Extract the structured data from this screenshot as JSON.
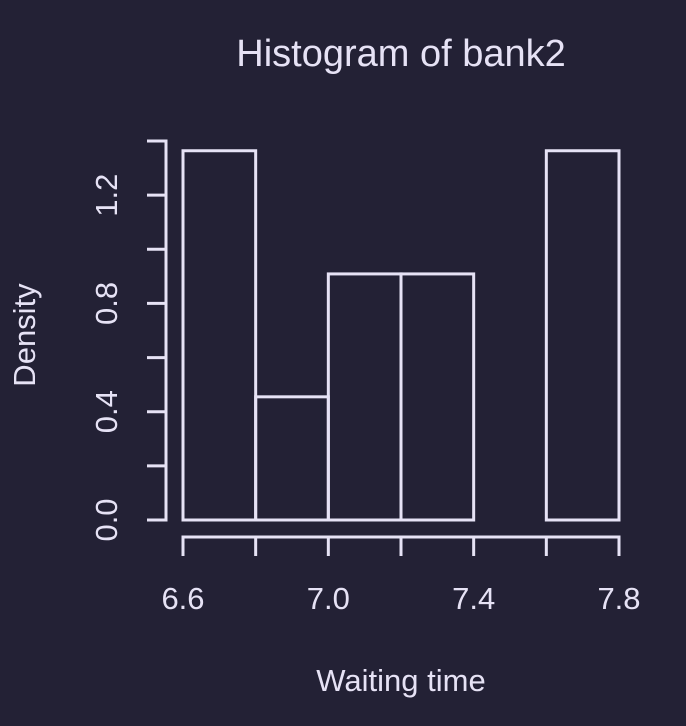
{
  "colors": {
    "background": "#232135",
    "foreground": "#e6e2f5"
  },
  "chart_data": {
    "type": "bar",
    "subtype": "histogram",
    "title": "Histogram of bank2",
    "xlabel": "Waiting time",
    "ylabel": "Density",
    "bins": [
      {
        "start": 6.6,
        "end": 6.8,
        "density": 1.364
      },
      {
        "start": 6.8,
        "end": 7.0,
        "density": 0.455
      },
      {
        "start": 7.0,
        "end": 7.2,
        "density": 0.909
      },
      {
        "start": 7.2,
        "end": 7.4,
        "density": 0.909
      },
      {
        "start": 7.4,
        "end": 7.6,
        "density": 0.0
      },
      {
        "start": 7.6,
        "end": 7.8,
        "density": 1.364
      }
    ],
    "xlim": [
      6.6,
      7.8
    ],
    "ylim": [
      0,
      1.4
    ],
    "x_ticks": [
      6.6,
      6.8,
      7.0,
      7.2,
      7.4,
      7.6,
      7.8
    ],
    "x_tick_labels": [
      "6.6",
      "",
      "7.0",
      "",
      "7.4",
      "",
      "7.8"
    ],
    "y_ticks": [
      0.0,
      0.2,
      0.4,
      0.6,
      0.8,
      1.0,
      1.2,
      1.4
    ],
    "y_tick_labels": [
      "0.0",
      "",
      "0.4",
      "",
      "0.8",
      "",
      "1.2",
      ""
    ],
    "grid": false,
    "legend": "none"
  }
}
